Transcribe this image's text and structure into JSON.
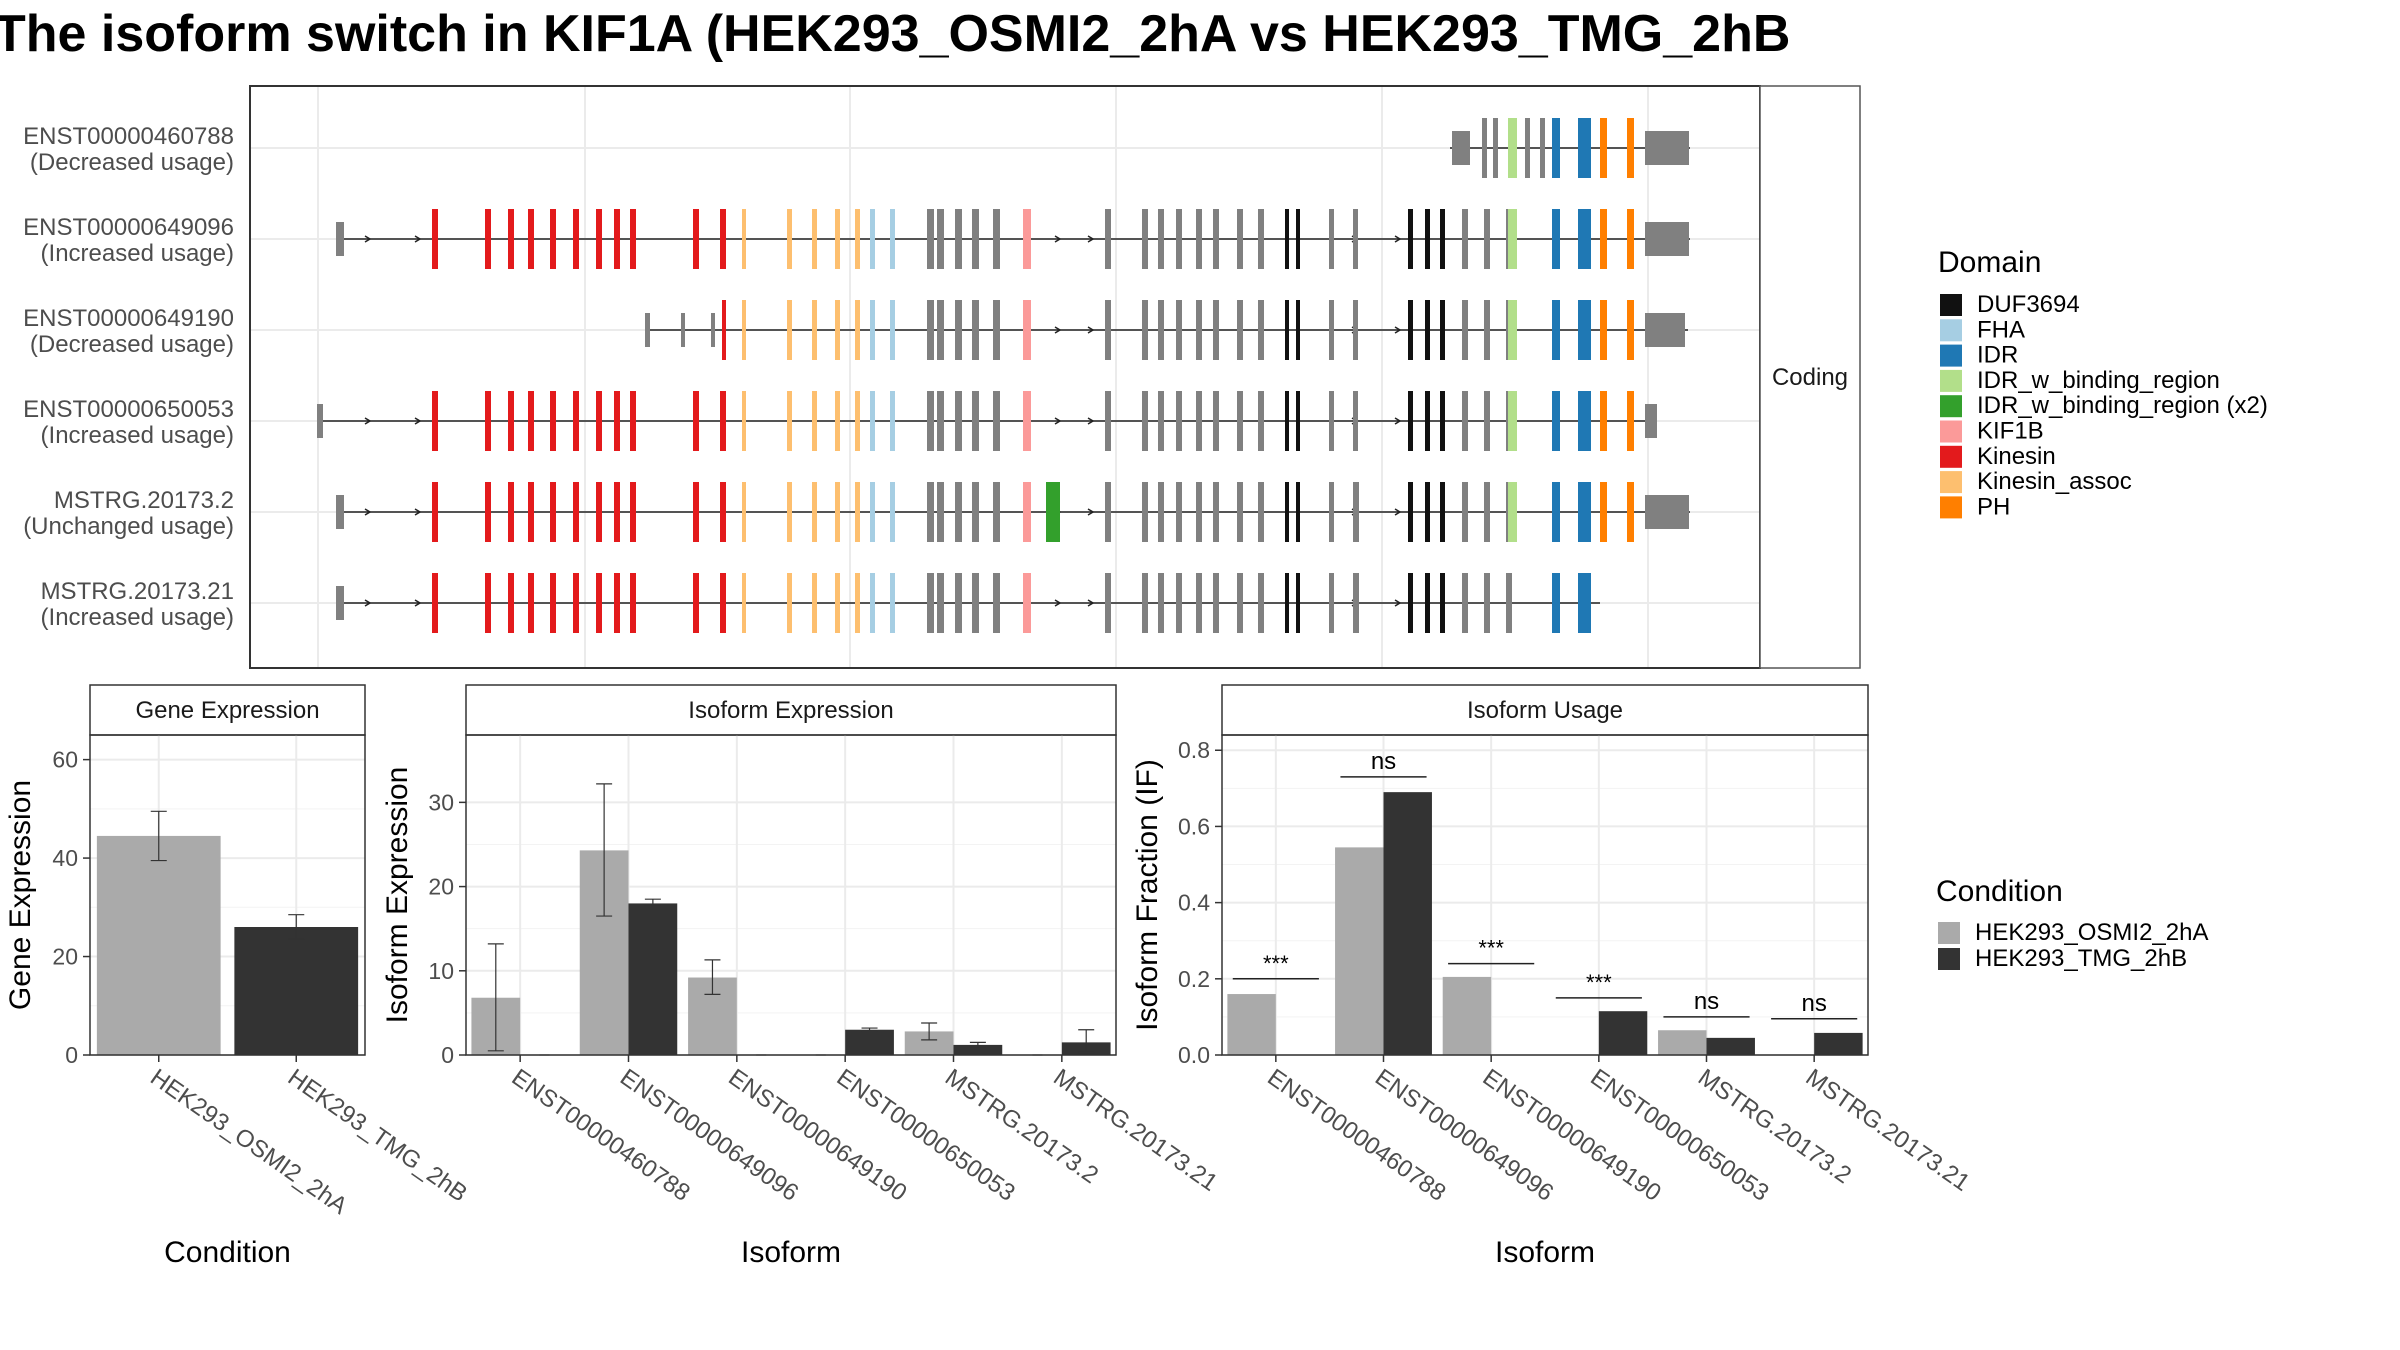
{
  "title": "The isoform switch in KIF1A (HEK293_OSMI2_2hA vs HEK293_TMG_2hB",
  "colors": {
    "DUF3694": "#111111",
    "FHA": "#a6cee3",
    "IDR": "#1f78b4",
    "IDR_w_binding_region": "#b2df8a",
    "IDR_w_binding_region (x2)": "#33a02c",
    "KIF1B": "#fb9a99",
    "Kinesin": "#e31a1c",
    "Kinesin_assoc": "#fdbf6f",
    "PH": "#ff7f00",
    "noncoding_exon": "#808080",
    "cond1": "#aaaaaa",
    "cond2": "#333333"
  },
  "chart_data": [
    {
      "type": "gene-structure",
      "facet_label": "Coding",
      "legend_title": "Domain",
      "legend_items": [
        "DUF3694",
        "FHA",
        "IDR",
        "IDR_w_binding_region",
        "IDR_w_binding_region (x2)",
        "KIF1B",
        "Kinesin",
        "Kinesin_assoc",
        "PH"
      ],
      "isoforms": [
        {
          "id": "ENST00000460788",
          "usage": "(Decreased usage)"
        },
        {
          "id": "ENST00000649096",
          "usage": "(Increased usage)"
        },
        {
          "id": "ENST00000649190",
          "usage": "(Decreased usage)"
        },
        {
          "id": "ENST00000650053",
          "usage": "(Increased usage)"
        },
        {
          "id": "MSTRG.20173.2",
          "usage": "(Unchanged usage)"
        },
        {
          "id": "MSTRG.20173.21",
          "usage": "(Increased usage)"
        }
      ]
    },
    {
      "type": "bar",
      "strip": "Gene Expression",
      "xlabel": "Condition",
      "ylabel": "Gene Expression",
      "ylim": [
        0,
        65
      ],
      "yticks": [
        0,
        20,
        40,
        60
      ],
      "categories": [
        "HEK293_OSMI2_2hA",
        "HEK293_TMG_2hB"
      ],
      "values": [
        44.5,
        26
      ],
      "errors": [
        [
          39.5,
          49.5
        ],
        [
          23.5,
          28.5
        ]
      ]
    },
    {
      "type": "bar",
      "strip": "Isoform Expression",
      "xlabel": "Isoform",
      "ylabel": "Isoform Expression",
      "ylim": [
        0,
        38
      ],
      "yticks": [
        0,
        10,
        20,
        30
      ],
      "categories": [
        "ENST00000460788",
        "ENST00000649096",
        "ENST00000649190",
        "ENST00000650053",
        "MSTRG.20173.2",
        "MSTRG.20173.21"
      ],
      "series": [
        {
          "values": [
            6.8,
            24.3,
            9.2,
            0,
            2.8,
            0
          ],
          "errors": [
            [
              0.5,
              13.2
            ],
            [
              16.5,
              32.2
            ],
            [
              7.2,
              11.3
            ],
            null,
            [
              1.8,
              3.8
            ],
            null
          ]
        },
        {
          "values": [
            0,
            18.0,
            0,
            3.0,
            1.2,
            1.5
          ],
          "errors": [
            null,
            [
              17.7,
              18.5
            ],
            null,
            [
              2.8,
              3.2
            ],
            [
              1.0,
              1.5
            ],
            [
              0.3,
              3.0
            ]
          ]
        }
      ]
    },
    {
      "type": "bar",
      "strip": "Isoform Usage",
      "xlabel": "Isoform",
      "ylabel": "Isoform Fraction (IF)",
      "ylim": [
        0,
        0.84
      ],
      "yticks": [
        0.0,
        0.2,
        0.4,
        0.6,
        0.8
      ],
      "ytick_labels": [
        "0.0",
        "0.2",
        "0.4",
        "0.6",
        "0.8"
      ],
      "categories": [
        "ENST00000460788",
        "ENST00000649096",
        "ENST00000649190",
        "ENST00000650053",
        "MSTRG.20173.2",
        "MSTRG.20173.21"
      ],
      "series": [
        {
          "values": [
            0.16,
            0.545,
            0.205,
            0,
            0.065,
            0
          ]
        },
        {
          "values": [
            0,
            0.69,
            0,
            0.115,
            0.045,
            0.058
          ]
        }
      ],
      "significance": [
        "***",
        "ns",
        "***",
        "***",
        "ns",
        "ns"
      ],
      "sig_y": [
        0.2,
        0.73,
        0.24,
        0.15,
        0.1,
        0.095
      ]
    }
  ],
  "condition_legend": {
    "title": "Condition",
    "items": [
      "HEK293_OSMI2_2hA",
      "HEK293_TMG_2hB"
    ]
  }
}
